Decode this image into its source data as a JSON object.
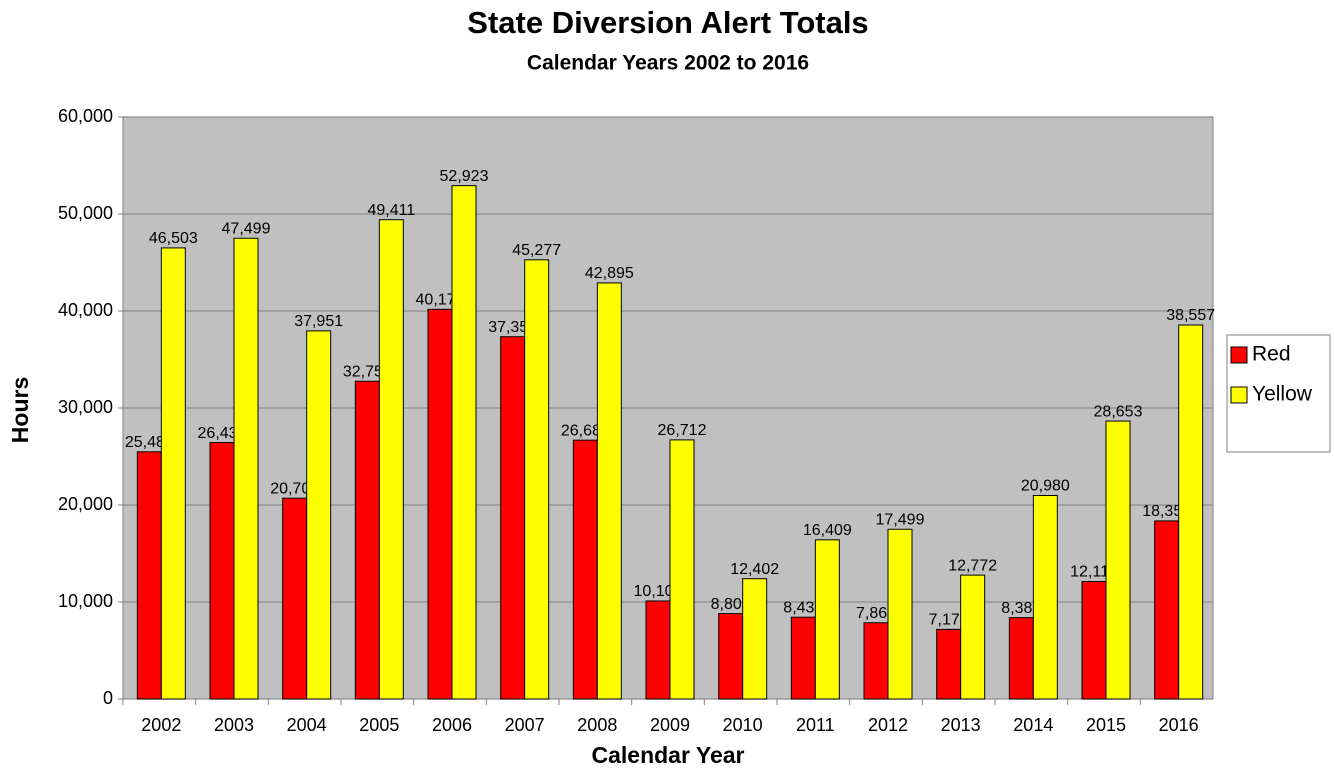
{
  "chart_data": {
    "type": "bar",
    "title": "State Diversion Alert Totals",
    "subtitle": "Calendar Years 2002 to 2016",
    "x_label": "Calendar Year",
    "y_label": "Hours",
    "categories": [
      "2002",
      "2003",
      "2004",
      "2005",
      "2006",
      "2007",
      "2008",
      "2009",
      "2010",
      "2011",
      "2012",
      "2013",
      "2014",
      "2015",
      "2016"
    ],
    "series": [
      {
        "name": "Red",
        "color": "#ff0000",
        "values": [
          25484,
          26438,
          20702,
          32758,
          40174,
          37350,
          26684,
          10106,
          8803,
          8434,
          7860,
          7176,
          8386,
          12116,
          18358
        ],
        "value_labels": [
          "25,484",
          "26,438",
          "20,702",
          "32,758",
          "40,174",
          "37,350",
          "26,684",
          "10,106",
          "8,803",
          "8,434",
          "7,860",
          "7,176",
          "8,386",
          "12,116",
          "18,358"
        ]
      },
      {
        "name": "Yellow",
        "color": "#ffff00",
        "values": [
          46503,
          47499,
          37951,
          49411,
          52923,
          45277,
          42895,
          26712,
          12402,
          16409,
          17499,
          12772,
          20980,
          28653,
          38557
        ],
        "value_labels": [
          "46,503",
          "47,499",
          "37,951",
          "49,411",
          "52,923",
          "45,277",
          "42,895",
          "26,712",
          "12,402",
          "16,409",
          "17,499",
          "12,772",
          "20,980",
          "28,653",
          "38,557"
        ]
      }
    ],
    "ylim": [
      0,
      60000
    ],
    "yticks": [
      0,
      {
        "value": 10000,
        "label": "10,000"
      },
      {
        "value": 20000,
        "label": "20,000"
      },
      {
        "value": 30000,
        "label": "30,000"
      },
      {
        "value": 40000,
        "label": "40,000"
      },
      {
        "value": 50000,
        "label": "50,000"
      },
      {
        "value": 60000,
        "label": "60,000"
      }
    ],
    "grid": true,
    "legend": "right"
  }
}
